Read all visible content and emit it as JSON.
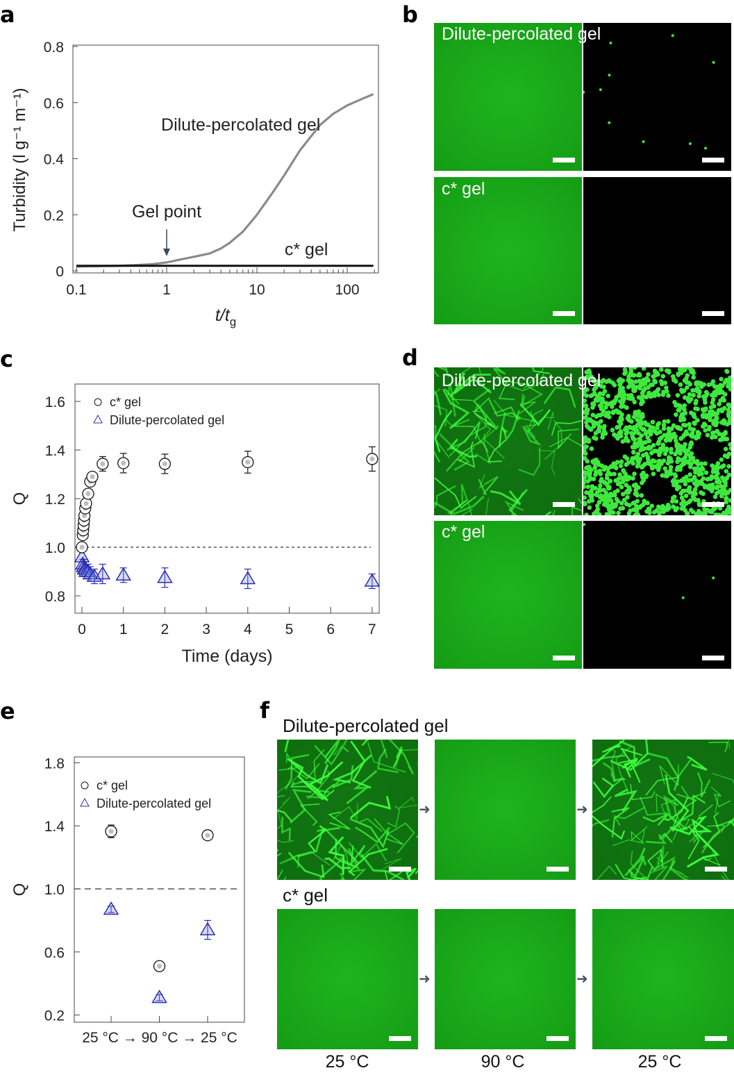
{
  "panel_labels": {
    "a": "a",
    "b": "b",
    "c": "c",
    "d": "d",
    "e": "e",
    "f": "f"
  },
  "images": {
    "dilute_label": "Dilute-percolated gel",
    "cstar_label": "c* gel",
    "f_temps": [
      "25 °C",
      "90 °C",
      "25 °C"
    ],
    "colors": {
      "green": "#16a316",
      "arrow": "#4a5563"
    }
  },
  "chart_data": [
    {
      "id": "a",
      "type": "line",
      "xlabel": "t/tg",
      "xlabel_main": "t/t",
      "xlabel_sub": "g",
      "ylabel": "Turbidity (l g⁻¹ m⁻¹)",
      "xscale": "log",
      "xlim": [
        0.1,
        220
      ],
      "ylim": [
        0,
        0.8
      ],
      "xticks": [
        {
          "v": 0.1,
          "label": "0.1"
        },
        {
          "v": 1,
          "label": "1"
        },
        {
          "v": 10,
          "label": "10"
        },
        {
          "v": 100,
          "label": "100"
        }
      ],
      "yticks": [
        {
          "v": 0,
          "label": "0"
        },
        {
          "v": 0.2,
          "label": "0.2"
        },
        {
          "v": 0.4,
          "label": "0.4"
        },
        {
          "v": 0.6,
          "label": "0.6"
        },
        {
          "v": 0.8,
          "label": "0.8"
        }
      ],
      "series": [
        {
          "name": "Dilute-percolated gel",
          "color": "#8a8a8a",
          "x": [
            0.1,
            0.2,
            0.3,
            0.5,
            0.7,
            1,
            1.5,
            2,
            3,
            4,
            5,
            7,
            10,
            15,
            20,
            30,
            50,
            70,
            100,
            150,
            195
          ],
          "y": [
            0.015,
            0.017,
            0.018,
            0.021,
            0.024,
            0.03,
            0.042,
            0.05,
            0.062,
            0.08,
            0.1,
            0.14,
            0.2,
            0.28,
            0.34,
            0.43,
            0.52,
            0.56,
            0.59,
            0.615,
            0.63
          ]
        },
        {
          "name": "c* gel",
          "color": "#111111",
          "x": [
            0.1,
            1,
            10,
            100,
            195
          ],
          "y": [
            0.018,
            0.018,
            0.018,
            0.018,
            0.018
          ]
        }
      ],
      "annotations": [
        {
          "text": "Dilute-percolated gel",
          "x": 3,
          "y": 0.52
        },
        {
          "text": "Gel point",
          "x": 1,
          "y": 0.21,
          "arrow_to": [
            1,
            0.045
          ]
        },
        {
          "text": "c* gel",
          "x": 60,
          "y": 0.075
        }
      ]
    },
    {
      "id": "c",
      "type": "scatter",
      "xlabel": "Time (days)",
      "ylabel": "Q",
      "xlim": [
        -0.15,
        7.2
      ],
      "ylim": [
        0.72,
        1.71
      ],
      "xticks": [
        {
          "v": 0,
          "label": "0"
        },
        {
          "v": 1,
          "label": "1"
        },
        {
          "v": 2,
          "label": "2"
        },
        {
          "v": 3,
          "label": "3"
        },
        {
          "v": 4,
          "label": "4"
        },
        {
          "v": 5,
          "label": "5"
        },
        {
          "v": 6,
          "label": "6"
        },
        {
          "v": 7,
          "label": "7"
        }
      ],
      "yticks": [
        {
          "v": 0.8,
          "label": "0.8"
        },
        {
          "v": 1.0,
          "label": "1.0"
        },
        {
          "v": 1.2,
          "label": "1.2"
        },
        {
          "v": 1.4,
          "label": "1.4"
        },
        {
          "v": 1.6,
          "label": "1.6"
        }
      ],
      "reference_line": 1.0,
      "legend": {
        "placement": "top-left",
        "entries": [
          "c* gel",
          "Dilute-percolated gel"
        ]
      },
      "series": [
        {
          "name": "c* gel",
          "marker": "circle",
          "color": "#111111",
          "x": [
            0,
            0.02,
            0.03,
            0.04,
            0.05,
            0.06,
            0.08,
            0.1,
            0.15,
            0.2,
            0.25,
            0.5,
            1,
            2,
            4,
            7
          ],
          "y": [
            1.0,
            1.05,
            1.07,
            1.09,
            1.11,
            1.13,
            1.16,
            1.18,
            1.22,
            1.27,
            1.29,
            1.343,
            1.346,
            1.343,
            1.35,
            1.363
          ],
          "err": [
            0,
            0,
            0,
            0,
            0,
            0,
            0,
            0,
            0,
            0,
            0,
            0.03,
            0.04,
            0.04,
            0.045,
            0.05
          ]
        },
        {
          "name": "Dilute-percolated gel",
          "marker": "triangle",
          "color": "#2b2bb0",
          "x": [
            0,
            0.02,
            0.04,
            0.06,
            0.08,
            0.1,
            0.15,
            0.2,
            0.3,
            0.5,
            1,
            2,
            4,
            7
          ],
          "y": [
            0.96,
            0.93,
            0.92,
            0.91,
            0.91,
            0.9,
            0.9,
            0.89,
            0.88,
            0.89,
            0.885,
            0.875,
            0.87,
            0.86
          ],
          "err": [
            0,
            0.02,
            0.03,
            0.03,
            0.03,
            0.03,
            0.03,
            0.03,
            0.03,
            0.04,
            0.03,
            0.04,
            0.04,
            0.03
          ]
        }
      ]
    },
    {
      "id": "e",
      "type": "scatter",
      "xlabel": "25 °C → 90 °C → 25 °C",
      "ylabel": "Q",
      "categories": [
        "25 °C",
        "90 °C",
        "25 °C"
      ],
      "ylim": [
        0.15,
        1.84
      ],
      "yticks": [
        {
          "v": 0.2,
          "label": "0.2"
        },
        {
          "v": 0.6,
          "label": "0.6"
        },
        {
          "v": 1.0,
          "label": "1.0"
        },
        {
          "v": 1.4,
          "label": "1.4"
        },
        {
          "v": 1.8,
          "label": "1.8"
        }
      ],
      "reference_line": 1.0,
      "legend": {
        "placement": "top-left",
        "entries": [
          "c* gel",
          "Dilute-percolated gel"
        ]
      },
      "series": [
        {
          "name": "c* gel",
          "marker": "circle",
          "color": "#111111",
          "values": [
            1.365,
            0.51,
            1.34
          ],
          "err": [
            0.04,
            0.02,
            0.01
          ]
        },
        {
          "name": "Dilute-percolated gel",
          "marker": "triangle",
          "color": "#2b2bb0",
          "values": [
            0.87,
            0.31,
            0.74
          ],
          "err": [
            0.02,
            0.02,
            0.06
          ]
        }
      ]
    }
  ]
}
